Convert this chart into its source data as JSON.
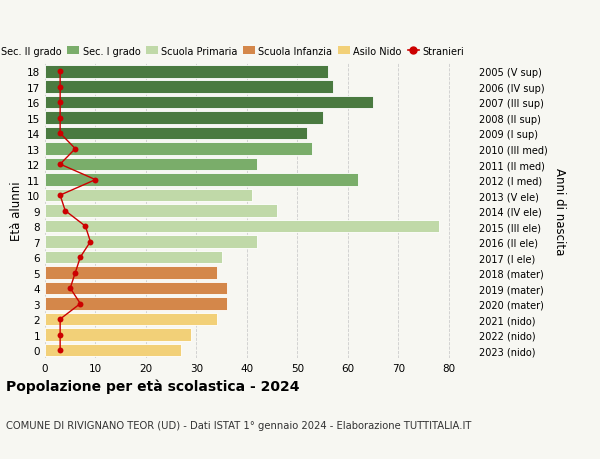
{
  "ages": [
    18,
    17,
    16,
    15,
    14,
    13,
    12,
    11,
    10,
    9,
    8,
    7,
    6,
    5,
    4,
    3,
    2,
    1,
    0
  ],
  "bar_values": [
    56,
    57,
    65,
    55,
    52,
    53,
    42,
    62,
    41,
    46,
    78,
    42,
    35,
    34,
    36,
    36,
    34,
    29,
    27
  ],
  "stranieri_values": [
    3,
    3,
    3,
    3,
    3,
    6,
    3,
    10,
    3,
    4,
    8,
    9,
    7,
    6,
    5,
    7,
    3,
    3,
    3
  ],
  "right_labels": [
    "2005 (V sup)",
    "2006 (IV sup)",
    "2007 (III sup)",
    "2008 (II sup)",
    "2009 (I sup)",
    "2010 (III med)",
    "2011 (II med)",
    "2012 (I med)",
    "2013 (V ele)",
    "2014 (IV ele)",
    "2015 (III ele)",
    "2016 (II ele)",
    "2017 (I ele)",
    "2018 (mater)",
    "2019 (mater)",
    "2020 (mater)",
    "2021 (nido)",
    "2022 (nido)",
    "2023 (nido)"
  ],
  "bar_colors": [
    "#4a7a40",
    "#4a7a40",
    "#4a7a40",
    "#4a7a40",
    "#4a7a40",
    "#7aad6a",
    "#7aad6a",
    "#7aad6a",
    "#c0d9a8",
    "#c0d9a8",
    "#c0d9a8",
    "#c0d9a8",
    "#c0d9a8",
    "#d4874a",
    "#d4874a",
    "#d4874a",
    "#f2d078",
    "#f2d078",
    "#f2d078"
  ],
  "legend_labels": [
    "Sec. II grado",
    "Sec. I grado",
    "Scuola Primaria",
    "Scuola Infanzia",
    "Asilo Nido",
    "Stranieri"
  ],
  "legend_colors": [
    "#4a7a40",
    "#7aad6a",
    "#c0d9a8",
    "#d4874a",
    "#f2d078",
    "#cc0000"
  ],
  "title": "Popolazione per età scolastica - 2024",
  "subtitle": "COMUNE DI RIVIGNANO TEOR (UD) - Dati ISTAT 1° gennaio 2024 - Elaborazione TUTTITALIA.IT",
  "ylabel_left": "Età alunni",
  "ylabel_right": "Anni di nascita",
  "xlim": [
    0,
    85
  ],
  "xticks": [
    0,
    10,
    20,
    30,
    40,
    50,
    60,
    70,
    80
  ],
  "stranieri_color": "#cc0000",
  "background_color": "#f7f7f2",
  "grid_color": "#cccccc"
}
